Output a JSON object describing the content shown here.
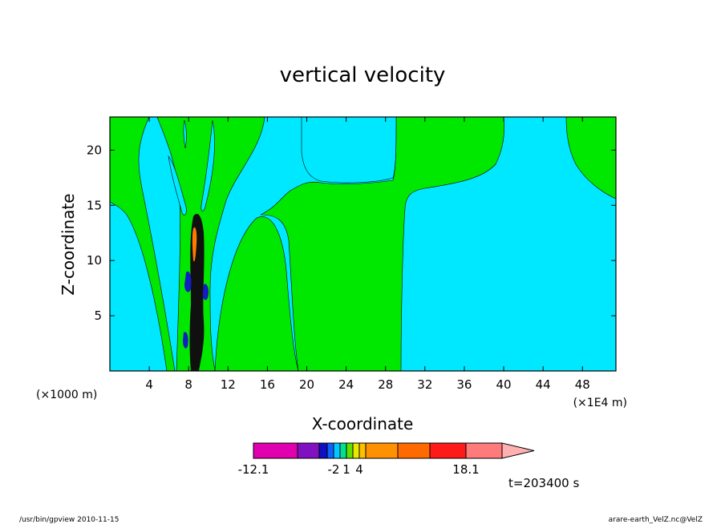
{
  "chart_data": {
    "type": "heatmap",
    "title": "vertical velocity",
    "xlabel": "X-coordinate",
    "ylabel": "Z-coordinate",
    "x_unit_left": "(×1000 m)",
    "x_unit_right": "(×1E4 m)",
    "xlim": [
      0,
      51.4
    ],
    "ylim": [
      0,
      23
    ],
    "x_ticks": [
      4,
      8,
      12,
      16,
      20,
      24,
      28,
      32,
      36,
      40,
      44,
      48
    ],
    "y_ticks": [
      5,
      10,
      15,
      20
    ],
    "background_value": "cyan",
    "colorbar": {
      "colors": [
        "#e000b0",
        "#8010c0",
        "#1010c0",
        "#1060ff",
        "#00c8ff",
        "#00e090",
        "#60e000",
        "#e8e800",
        "#ffc000",
        "#ff9000",
        "#ff6a00",
        "#ff1a1a",
        "#ff7a7a",
        "#ffb0b0"
      ],
      "labels": [
        {
          "text": "-12.1",
          "index": 0
        },
        {
          "text": "-2",
          "index": 4
        },
        {
          "text": "1",
          "index": 6
        },
        {
          "text": "4",
          "index": 8
        },
        {
          "text": "18.1",
          "index": 12
        }
      ]
    },
    "colors": {
      "cyan": "#00e8ff",
      "green": "#00e800",
      "dark": "#101010",
      "orange": "#ff7a00",
      "blue": "#1020c0"
    }
  },
  "annotation_time": "t=203400 s",
  "footer_left": "/usr/bin/gpview  2010-11-15",
  "footer_right": "arare-earth_VelZ.nc@VelZ"
}
